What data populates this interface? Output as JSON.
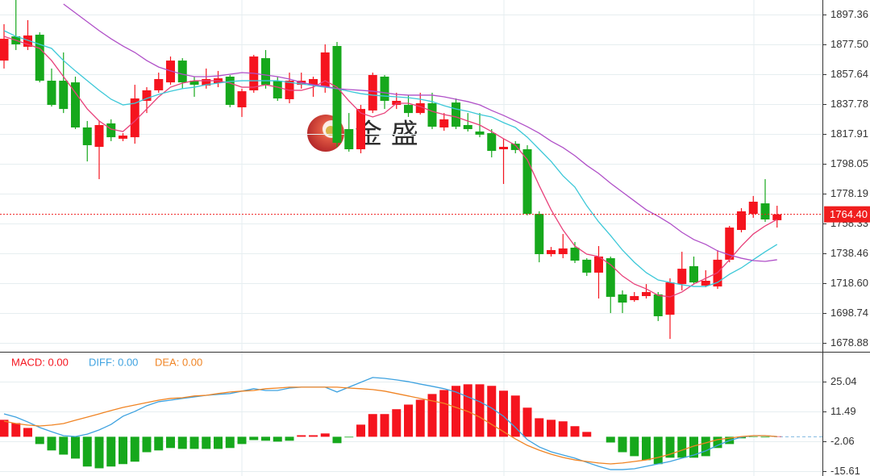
{
  "chart_data": [
    {
      "type": "candlestick",
      "ylim": [
        1673.5,
        1907.0
      ],
      "yticks": [
        1897.36,
        {
          "value": 1877.5,
          "label": "1877.50"
        },
        1857.64,
        1837.78,
        1817.91,
        1798.05,
        1778.19,
        1758.33,
        1738.46,
        {
          "value": 1718.6,
          "label": "1718.60"
        },
        1698.74,
        1678.88
      ],
      "up_color": "#f5141e",
      "down_color": "#16a81c",
      "grid": true,
      "open": [
        1866.7,
        1882.8,
        1875.9,
        1883.9,
        1853.3,
        1853.3,
        1852.2,
        1822.2,
        1809.3,
        1824.9,
        1814.7,
        1815.7,
        1839.9,
        1846.9,
        1852.2,
        1866.7,
        1853.3,
        1850.1,
        1851.7,
        1856.0,
        1835.6,
        1846.9,
        1868.3,
        1853.3,
        1841.0,
        1850.6,
        1850.1,
        1849.0,
        1876.4,
        1821.1,
        1807.7,
        1833.5,
        1856.0,
        1837.2,
        1837.2,
        1831.8,
        1838.3,
        1822.2,
        1838.8,
        1823.8,
        1819.5,
        1818.4,
        1807.7,
        1811.4,
        1807.7,
        1764.7,
        1737.9,
        1737.9,
        1742.2,
        1734.2,
        1725.6,
        1735.2,
        1711.1,
        1707.3,
        1710.0,
        1711.1,
        1697.6,
        1718.0,
        1729.9,
        1717.0,
        1716.4,
        1734.2,
        1754.0,
        1764.7,
        1771.7,
        1760.5
      ],
      "high": [
        1890.9,
        1907.0,
        1893.6,
        1885.5,
        1861.4,
        1872.1,
        1856.0,
        1826.5,
        1826.5,
        1827.6,
        1818.4,
        1850.6,
        1849.0,
        1858.7,
        1869.4,
        1868.3,
        1856.0,
        1861.4,
        1859.8,
        1857.1,
        1848.0,
        1870.5,
        1873.7,
        1856.0,
        1858.7,
        1858.7,
        1856.0,
        1877.5,
        1879.1,
        1831.8,
        1837.2,
        1858.7,
        1857.1,
        1845.3,
        1843.7,
        1845.3,
        1845.3,
        1831.8,
        1841.5,
        1831.8,
        1831.8,
        1821.1,
        1814.7,
        1813.1,
        1810.4,
        1766.4,
        1742.7,
        1751.3,
        1746.0,
        1735.2,
        1743.3,
        1736.3,
        1713.8,
        1712.7,
        1718.0,
        1712.7,
        1721.8,
        1739.5,
        1736.3,
        1727.2,
        1740.6,
        1756.7,
        1768.5,
        1776.6,
        1787.8,
        1770.1
      ],
      "low": [
        1861.4,
        1873.7,
        1873.7,
        1852.2,
        1836.1,
        1831.8,
        1821.1,
        1799.6,
        1787.8,
        1813.1,
        1813.1,
        1811.4,
        1831.8,
        1845.3,
        1850.6,
        1848.0,
        1842.6,
        1848.0,
        1849.0,
        1835.6,
        1829.2,
        1845.3,
        1848.0,
        1839.9,
        1838.3,
        1848.0,
        1842.6,
        1845.3,
        1809.3,
        1806.1,
        1805.0,
        1831.8,
        1834.5,
        1834.5,
        1829.2,
        1830.8,
        1821.1,
        1820.0,
        1821.1,
        1819.5,
        1815.7,
        1802.3,
        1784.6,
        1805.0,
        1763.7,
        1732.5,
        1736.3,
        1735.2,
        1732.0,
        1723.4,
        1708.4,
        1698.7,
        1698.7,
        1706.2,
        1708.4,
        1693.4,
        1681.5,
        1713.8,
        1718.0,
        1715.9,
        1714.8,
        1732.5,
        1752.4,
        1762.1,
        1759.4,
        1755.6
      ],
      "close": [
        1881.2,
        1877.5,
        1883.4,
        1853.3,
        1837.2,
        1834.5,
        1822.2,
        1810.4,
        1823.8,
        1815.7,
        1816.8,
        1841.5,
        1846.9,
        1854.4,
        1866.7,
        1852.2,
        1850.6,
        1854.4,
        1854.9,
        1837.2,
        1846.3,
        1869.4,
        1850.6,
        1841.5,
        1853.3,
        1853.3,
        1854.4,
        1872.1,
        1812.0,
        1807.7,
        1834.5,
        1857.1,
        1839.9,
        1839.9,
        1831.8,
        1838.3,
        1822.7,
        1827.6,
        1822.7,
        1821.1,
        1817.4,
        1806.6,
        1809.3,
        1807.2,
        1764.7,
        1737.9,
        1740.6,
        1741.7,
        1733.6,
        1725.6,
        1736.3,
        1709.5,
        1705.7,
        1710.0,
        1712.7,
        1696.6,
        1719.1,
        1728.2,
        1719.1,
        1720.2,
        1734.2,
        1755.6,
        1766.4,
        1772.8,
        1761.0,
        1764.4
      ],
      "lines": [
        {
          "color": "#e8407a",
          "values": [
            1882.8,
            1880.2,
            1877.5,
            1874.8,
            1866.7,
            1856.0,
            1845.3,
            1834.5,
            1826.5,
            1821.1,
            1819.5,
            1826.5,
            1834.5,
            1842.6,
            1849.0,
            1851.7,
            1853.3,
            1853.3,
            1853.3,
            1851.7,
            1849.0,
            1849.0,
            1850.6,
            1849.0,
            1846.9,
            1846.9,
            1849.0,
            1853.3,
            1849.0,
            1839.9,
            1831.8,
            1829.2,
            1831.8,
            1838.3,
            1838.3,
            1836.1,
            1832.9,
            1830.8,
            1829.2,
            1826.5,
            1823.8,
            1819.5,
            1814.7,
            1810.4,
            1800.7,
            1783.5,
            1767.4,
            1754.0,
            1743.3,
            1737.9,
            1736.3,
            1730.9,
            1723.4,
            1718.0,
            1714.8,
            1710.5,
            1709.5,
            1712.7,
            1718.0,
            1721.8,
            1725.6,
            1734.2,
            1743.3,
            1751.3,
            1756.7,
            1761.0
          ]
        },
        {
          "color": "#3cc8d8",
          "values": [
            1886.6,
            1882.8,
            1880.2,
            1877.5,
            1874.8,
            1866.7,
            1859.8,
            1853.3,
            1846.9,
            1841.0,
            1837.2,
            1838.3,
            1841.5,
            1844.2,
            1846.3,
            1848.0,
            1849.0,
            1850.6,
            1851.7,
            1852.8,
            1853.3,
            1853.3,
            1853.3,
            1853.3,
            1852.2,
            1851.2,
            1850.1,
            1849.0,
            1848.0,
            1846.3,
            1844.7,
            1843.7,
            1843.1,
            1842.6,
            1842.0,
            1841.0,
            1839.4,
            1836.7,
            1834.5,
            1832.9,
            1830.8,
            1829.2,
            1825.4,
            1822.2,
            1815.7,
            1807.7,
            1799.6,
            1790.0,
            1782.5,
            1770.1,
            1759.4,
            1750.3,
            1740.6,
            1732.5,
            1725.6,
            1720.7,
            1719.1,
            1717.5,
            1716.4,
            1716.4,
            1719.1,
            1724.5,
            1728.8,
            1734.2,
            1739.5,
            1744.4
          ]
        },
        {
          "color": "#b050c8",
          "values": [
            null,
            null,
            null,
            null,
            null,
            1904.3,
            1898.4,
            1892.5,
            1886.6,
            1881.2,
            1876.4,
            1872.1,
            1866.7,
            1862.4,
            1859.8,
            1857.6,
            1856.0,
            1856.0,
            1856.5,
            1857.6,
            1858.7,
            1858.2,
            1857.1,
            1856.0,
            1854.4,
            1852.2,
            1850.6,
            1849.6,
            1848.0,
            1847.4,
            1846.9,
            1846.3,
            1845.3,
            1844.2,
            1843.7,
            1843.7,
            1843.7,
            1842.6,
            1841.0,
            1839.4,
            1837.2,
            1833.5,
            1830.2,
            1826.5,
            1822.7,
            1818.4,
            1813.1,
            1808.8,
            1803.4,
            1797.0,
            1791.6,
            1785.1,
            1779.2,
            1773.3,
            1767.4,
            1763.1,
            1758.3,
            1752.4,
            1747.6,
            1744.4,
            1740.1,
            1737.4,
            1735.2,
            1733.6,
            1733.1,
            1734.2
          ]
        }
      ],
      "last_price": 1764.4,
      "last_price_label": "1764.40",
      "last_price_color": "#f01e1e",
      "watermark": "金 盛"
    },
    {
      "type": "macd",
      "ylim": [
        -17.8,
        38.2
      ],
      "yticks": [
        25.04,
        11.49,
        -2.06,
        -15.61
      ],
      "grid": true,
      "series": [
        {
          "name": "MACD: 0.00",
          "color": "#f5141e",
          "negative_color": "#16a81c",
          "style": "bar",
          "values": [
            7.7,
            6.2,
            4.0,
            -3.3,
            -6.2,
            -8.1,
            -9.9,
            -13.5,
            -14.3,
            -13.5,
            -12.4,
            -11.3,
            -7.0,
            -6.2,
            -5.1,
            -5.5,
            -5.5,
            -5.5,
            -5.5,
            -5.1,
            -3.3,
            -1.5,
            -1.8,
            -2.2,
            -1.8,
            0.7,
            0.7,
            1.5,
            -2.9,
            -0.3,
            5.5,
            10.3,
            10.3,
            12.5,
            14.6,
            16.8,
            19.4,
            21.2,
            23.1,
            23.8,
            23.8,
            23.1,
            20.9,
            18.7,
            13.2,
            8.4,
            7.7,
            7.0,
            4.8,
            2.2,
            0,
            -2.6,
            -7.0,
            -8.8,
            -10.6,
            -12.4,
            -9.5,
            -9.5,
            -9.5,
            -8.8,
            -5.1,
            -3.3,
            -0.7,
            -0.2,
            -0.3,
            0.2
          ]
        },
        {
          "name": "DIFF: 0.00",
          "color": "#3ea2e0",
          "style": "line",
          "values": [
            10.4,
            8.9,
            6.7,
            4.2,
            2.3,
            0.5,
            0.1,
            1.2,
            3.1,
            5.6,
            9.3,
            11.5,
            14.1,
            15.9,
            16.6,
            17.4,
            18.1,
            18.8,
            19.2,
            19.6,
            20.7,
            21.8,
            21.0,
            21.0,
            22.1,
            22.5,
            22.5,
            22.5,
            20.3,
            22.5,
            24.7,
            26.9,
            26.5,
            25.8,
            25.0,
            23.9,
            22.9,
            21.8,
            20.3,
            18.1,
            15.9,
            13.0,
            9.3,
            4.2,
            -1.3,
            -4.6,
            -6.8,
            -8.3,
            -9.7,
            -11.6,
            -13.4,
            -14.9,
            -14.9,
            -14.5,
            -13.4,
            -12.3,
            -11.2,
            -9.7,
            -8.3,
            -6.4,
            -3.9,
            -1.7,
            -0.2,
            0.5,
            0.5,
            0.1
          ]
        },
        {
          "name": "DEA: 0.00",
          "color": "#f08424",
          "style": "line",
          "values": [
            7.1,
            6.0,
            5.3,
            4.9,
            5.3,
            6.0,
            7.5,
            8.9,
            10.4,
            11.9,
            13.3,
            14.4,
            15.5,
            16.6,
            17.4,
            17.7,
            18.5,
            18.8,
            19.6,
            20.3,
            20.7,
            21.0,
            21.8,
            22.1,
            22.5,
            22.5,
            22.5,
            22.5,
            22.5,
            22.1,
            21.8,
            21.4,
            20.7,
            19.6,
            18.5,
            17.4,
            16.3,
            15.2,
            13.3,
            11.5,
            8.9,
            5.6,
            2.3,
            -1.0,
            -3.9,
            -6.1,
            -7.9,
            -9.4,
            -10.5,
            -11.2,
            -11.9,
            -12.3,
            -11.9,
            -11.2,
            -10.5,
            -9.4,
            -7.9,
            -6.1,
            -4.2,
            -2.8,
            -1.3,
            -0.6,
            0.1,
            0.5,
            0.5,
            0.1
          ]
        }
      ]
    }
  ]
}
